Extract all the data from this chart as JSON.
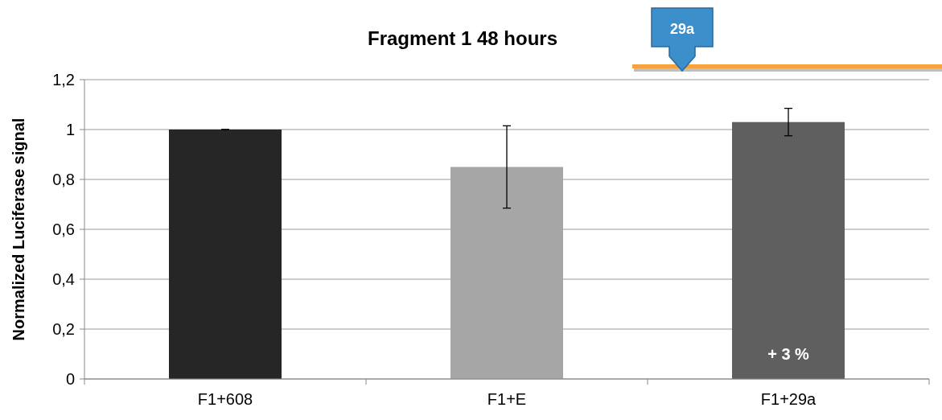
{
  "chart_data": {
    "type": "bar",
    "title": "Fragment 1 48 hours",
    "ylabel": "Normalized Luciferase signal",
    "categories": [
      "F1+608",
      "F1+E",
      "F1+29a"
    ],
    "values": [
      1.0,
      0.85,
      1.03
    ],
    "colors": [
      "#262626",
      "#a6a6a6",
      "#5f5f5f"
    ],
    "errors": [
      0,
      0.165,
      0.055
    ],
    "ylim": [
      0,
      1.2
    ],
    "yticks": [
      0,
      {
        "value": 0.2,
        "label": "0,2"
      },
      {
        "value": 0.4,
        "label": "0,4"
      },
      {
        "value": 0.6,
        "label": "0,6"
      },
      {
        "value": 0.8,
        "label": "0,8"
      },
      1,
      {
        "value": 1.2,
        "label": "1,2"
      }
    ],
    "grid": "y",
    "annotations": [
      "+ 3 %",
      "29a"
    ]
  }
}
